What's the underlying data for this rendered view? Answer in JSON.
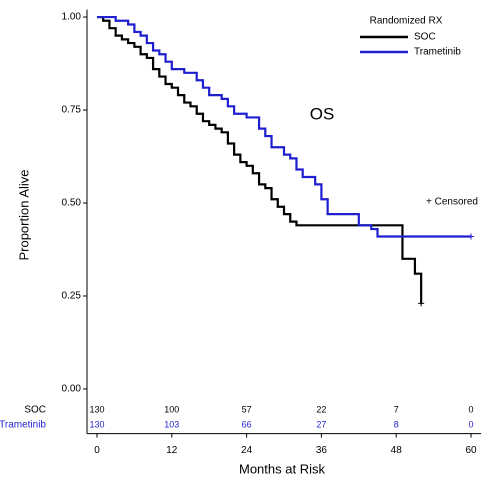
{
  "chart_data": {
    "type": "step",
    "annotation": "OS",
    "censored_label": "+ Censored",
    "legend_title": "Randomized RX",
    "xlabel": "Months at Risk",
    "ylabel": "Proportion Alive",
    "xlim": [
      -1.6,
      61.6
    ],
    "ylim": [
      -0.12,
      1.02
    ],
    "xticks": [
      0,
      12,
      24,
      36,
      48,
      60
    ],
    "yticks": [
      {
        "value": 0,
        "label": "0.00"
      },
      {
        "value": 0.25,
        "label": "0.25"
      },
      {
        "value": 0.5,
        "label": "0.50"
      },
      {
        "value": 0.75,
        "label": "0.75"
      },
      {
        "value": 1,
        "label": "1.00"
      }
    ],
    "series": [
      {
        "name": "SOC",
        "color": "#000000",
        "x": [
          0,
          1,
          2,
          3,
          4,
          5,
          6,
          7,
          8,
          9,
          10,
          11,
          12,
          13,
          14,
          15,
          16,
          17,
          18,
          19,
          20,
          21,
          22,
          23,
          24,
          25,
          26,
          27,
          28,
          29,
          30,
          31,
          32,
          48,
          49,
          51,
          52
        ],
        "values": [
          1.0,
          0.99,
          0.97,
          0.95,
          0.94,
          0.93,
          0.92,
          0.9,
          0.89,
          0.86,
          0.84,
          0.82,
          0.81,
          0.79,
          0.77,
          0.76,
          0.74,
          0.72,
          0.71,
          0.7,
          0.69,
          0.66,
          0.63,
          0.61,
          0.6,
          0.58,
          0.55,
          0.54,
          0.51,
          0.49,
          0.47,
          0.45,
          0.44,
          0.44,
          0.35,
          0.31,
          0.23
        ]
      },
      {
        "name": "Trametinib",
        "color": "#1f1fd0",
        "x": [
          0,
          3,
          5,
          6,
          7,
          8,
          9,
          10,
          11,
          12,
          14,
          16,
          17,
          18,
          20,
          21,
          22,
          24,
          26,
          27,
          28,
          30,
          31,
          32,
          33,
          35,
          36,
          37,
          41,
          42,
          44,
          45,
          60
        ],
        "values": [
          1.0,
          0.99,
          0.98,
          0.96,
          0.95,
          0.93,
          0.91,
          0.9,
          0.88,
          0.86,
          0.85,
          0.83,
          0.81,
          0.79,
          0.78,
          0.76,
          0.74,
          0.73,
          0.7,
          0.68,
          0.65,
          0.63,
          0.62,
          0.59,
          0.57,
          0.55,
          0.51,
          0.47,
          0.47,
          0.44,
          0.43,
          0.41,
          0.41
        ]
      }
    ],
    "risk_table": {
      "times": [
        0,
        12,
        24,
        36,
        48,
        60
      ],
      "rows": [
        {
          "values": [
            130,
            100,
            57,
            22,
            7,
            0
          ]
        },
        {
          "values": [
            130,
            103,
            66,
            27,
            8,
            0
          ]
        }
      ]
    }
  }
}
